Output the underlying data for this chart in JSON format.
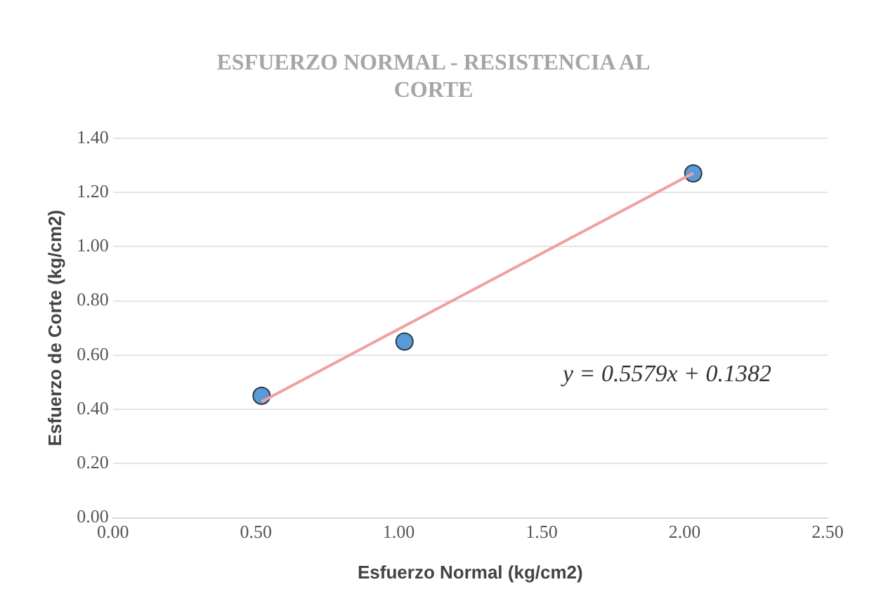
{
  "chart_data": {
    "type": "scatter",
    "title": "ESFUERZO NORMAL - RESISTENCIA AL CORTE",
    "xlabel": "Esfuerzo Normal (kg/cm2)",
    "ylabel": "Esfuerzo de Corte (kg/cm2)",
    "series": [
      {
        "type": "scatter",
        "color": "#5b9bd5",
        "marker": "circle",
        "x": [
          0.52,
          1.02,
          2.03
        ],
        "values": [
          0.45,
          0.65,
          1.27
        ]
      },
      {
        "type": "line",
        "color": "#f0a0a0",
        "marker": "none",
        "x": [
          0.52,
          2.03
        ],
        "values": [
          0.428,
          1.271
        ]
      }
    ],
    "annotations": [
      "y = 0.5579x + 0.1382"
    ],
    "xlim": [
      0,
      2.5
    ],
    "xticks": [
      {
        "value": 0,
        "label": "0.00"
      },
      {
        "value": 0.5,
        "label": "0.50"
      },
      {
        "value": 1,
        "label": "1.00"
      },
      {
        "value": 1.5,
        "label": "1.50"
      },
      {
        "value": 2,
        "label": "2.00"
      },
      {
        "value": 2.5,
        "label": "2.50"
      }
    ],
    "ylim": [
      0,
      1.4
    ],
    "yticks": [
      {
        "value": 0,
        "label": "0.00"
      },
      {
        "value": 0.2,
        "label": "0.20"
      },
      {
        "value": 0.4,
        "label": "0.40"
      },
      {
        "value": 0.6,
        "label": "0.60"
      },
      {
        "value": 0.8,
        "label": "0.80"
      },
      {
        "value": 1,
        "label": "1.00"
      },
      {
        "value": 1.2,
        "label": "1.20"
      },
      {
        "value": 1.4,
        "label": "1.40"
      }
    ],
    "grid": "y",
    "legend": false
  }
}
